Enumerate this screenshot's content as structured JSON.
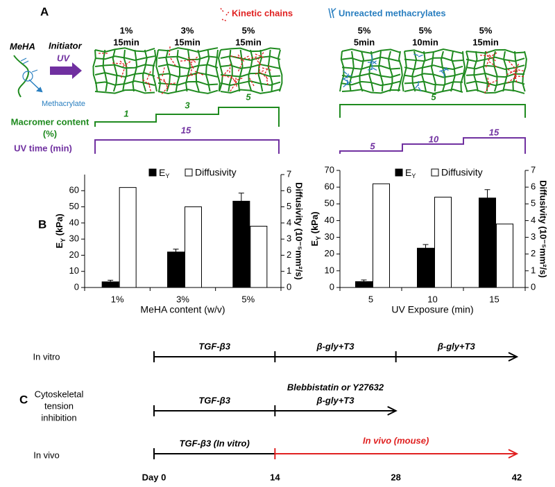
{
  "panel_a": {
    "label": "A",
    "legend": {
      "kinetic": "Kinetic chains",
      "unreacted": "Unreacted methacrylates"
    },
    "meha": "MeHA",
    "initiator": "Initiator",
    "uv": "UV",
    "methacrylate": "Methacrylate",
    "left_conditions": [
      [
        "1%",
        "15min"
      ],
      [
        "3%",
        "15min"
      ],
      [
        "5%",
        "15min"
      ]
    ],
    "right_conditions": [
      [
        "5%",
        "5min"
      ],
      [
        "5%",
        "10min"
      ],
      [
        "5%",
        "15min"
      ]
    ],
    "macromer_label": [
      "Macromer content",
      "(%)"
    ],
    "uv_label": "UV time (min)",
    "left_macromer_steps": [
      "1",
      "3",
      "5"
    ],
    "right_macromer_steps": [
      "5"
    ],
    "left_uv_steps": [
      "15"
    ],
    "right_uv_steps": [
      "5",
      "10",
      "15"
    ]
  },
  "panel_b_label": "B",
  "chart_data": [
    {
      "type": "bar",
      "categories": [
        "1%",
        "3%",
        "5%"
      ],
      "xlabel": "MeHA content (w/v)",
      "ylabel": {
        "symbol": "E",
        "subscript": "Y",
        "unit": " (kPa)"
      },
      "y2label": "Diffusivity (10⁻⁵mm²/s)",
      "series": [
        {
          "name": {
            "symbol": "E",
            "subscript": "Y"
          },
          "color": "#000000",
          "values": [
            3.5,
            22,
            53.5
          ],
          "errors": [
            1,
            1.8,
            5
          ]
        },
        {
          "name": "Diffusivity",
          "color": "#ffffff",
          "values": [
            6.2,
            5,
            3.8
          ],
          "axis": "y2"
        }
      ],
      "ylim": [
        0,
        70
      ],
      "yticks": [
        0,
        10,
        20,
        30,
        40,
        50,
        60
      ],
      "y2lim": [
        0,
        7
      ],
      "y2ticks": [
        0,
        1,
        2,
        3,
        4,
        5,
        6,
        7
      ]
    },
    {
      "type": "bar",
      "categories": [
        "5",
        "10",
        "15"
      ],
      "xlabel": "UV Exposure (min)",
      "ylabel": {
        "symbol": "E",
        "subscript": "Y",
        "unit": " (kPa)"
      },
      "y2label": "Diffusivity (10⁻⁵mm²/s)",
      "series": [
        {
          "name": {
            "symbol": "E",
            "subscript": "Y"
          },
          "color": "#000000",
          "values": [
            3.5,
            23.5,
            53.5
          ],
          "errors": [
            1,
            2.2,
            5
          ]
        },
        {
          "name": "Diffusivity",
          "color": "#ffffff",
          "values": [
            6.2,
            5.4,
            3.8
          ],
          "axis": "y2"
        }
      ],
      "ylim": [
        0,
        70
      ],
      "yticks": [
        0,
        10,
        20,
        30,
        40,
        50,
        60,
        70
      ],
      "y2lim": [
        0,
        7
      ],
      "y2ticks": [
        0,
        1,
        2,
        3,
        4,
        5,
        6,
        7
      ]
    }
  ],
  "panel_c": {
    "label": "C",
    "rows": [
      {
        "name": [
          "In vitro"
        ],
        "segments": [
          [
            "TGF-β3"
          ],
          [
            "β-gly+T3"
          ],
          [
            "β-gly+T3"
          ]
        ]
      },
      {
        "name": [
          "Cytoskeletal",
          "tension",
          "inhibition"
        ],
        "segments": [
          [
            "TGF-β3"
          ],
          [
            "Blebbistatin or Y27632",
            "β-gly+T3"
          ]
        ]
      },
      {
        "name": [
          "In vivo"
        ],
        "segments": [
          [
            "TGF-β3 (In vitro)"
          ],
          [
            "In vivo (mouse)"
          ]
        ]
      }
    ],
    "ticks": [
      {
        "value": 0,
        "label": "Day 0"
      },
      14,
      28,
      42
    ]
  }
}
